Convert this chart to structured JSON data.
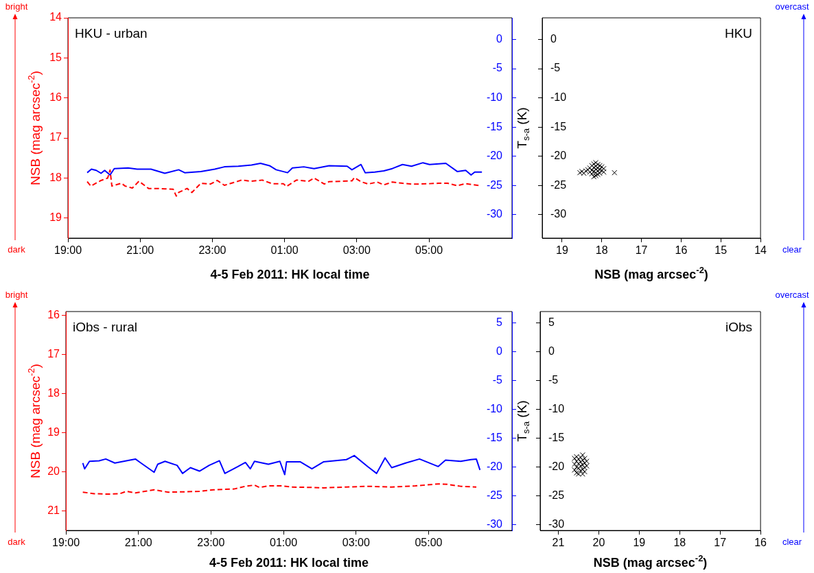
{
  "chart_data": [
    {
      "type": "line",
      "xlabel": "4-5 Feb 2011: HK local time",
      "ylabel": "NSB (mag arcsec$^{-2}$)",
      "annotations": [
        "HKU - urban",
        "bright",
        "dark"
      ],
      "xlim": [
        "2011-02-04T19:00",
        "2011-02-05T07:18"
      ],
      "xticks": [
        {
          "value": "2011-02-04T19:00",
          "label": "19:00"
        },
        {
          "value": "2011-02-04T21:00",
          "label": "21:00"
        },
        {
          "value": "2011-02-04T23:00",
          "label": "23:00"
        },
        {
          "value": "2011-02-05T01:00",
          "label": "01:00"
        },
        {
          "value": "2011-02-05T03:00",
          "label": "03:00"
        },
        {
          "value": "2011-02-05T05:00",
          "label": "05:00"
        }
      ],
      "ylim": [
        19.5,
        14
      ],
      "yticks": [
        14,
        15,
        16,
        17,
        18,
        19
      ],
      "y2lim": [
        -34,
        3.7
      ],
      "y2ticks": [
        0,
        -5,
        -10,
        -15,
        -20,
        -25,
        -30
      ],
      "series": [
        {
          "color": "#ff0000",
          "line_style": "dashed",
          "x": [
            "2011-02-04T19:32",
            "2011-02-04T19:38",
            "2011-02-04T19:55",
            "2011-02-04T20:06",
            "2011-02-04T20:10",
            "2011-02-04T20:13",
            "2011-02-04T20:29",
            "2011-02-04T20:35",
            "2011-02-04T20:47",
            "2011-02-04T20:58",
            "2011-02-04T21:14",
            "2011-02-04T21:26",
            "2011-02-04T21:41",
            "2011-02-04T21:55",
            "2011-02-04T22:00",
            "2011-02-04T22:04",
            "2011-02-04T22:18",
            "2011-02-04T22:26",
            "2011-02-04T22:41",
            "2011-02-04T22:57",
            "2011-02-04T23:08",
            "2011-02-04T23:20",
            "2011-02-04T23:38",
            "2011-02-04T23:49",
            "2011-02-05T00:05",
            "2011-02-05T00:23",
            "2011-02-05T00:39",
            "2011-02-05T00:58",
            "2011-02-05T01:03",
            "2011-02-05T01:20",
            "2011-02-05T01:40",
            "2011-02-05T01:49",
            "2011-02-05T02:06",
            "2011-02-05T02:14",
            "2011-02-05T02:52",
            "2011-02-05T02:56",
            "2011-02-05T03:07",
            "2011-02-05T03:19",
            "2011-02-05T03:34",
            "2011-02-05T03:45",
            "2011-02-05T03:59",
            "2011-02-05T04:16",
            "2011-02-05T04:31",
            "2011-02-05T04:45",
            "2011-02-05T05:01",
            "2011-02-05T05:16",
            "2011-02-05T05:31",
            "2011-02-05T05:47",
            "2011-02-05T06:01",
            "2011-02-05T06:24"
          ],
          "values": [
            18.09,
            18.2,
            18.06,
            18.0,
            17.8,
            18.2,
            18.13,
            18.2,
            18.25,
            18.08,
            18.26,
            18.26,
            18.27,
            18.28,
            18.45,
            18.36,
            18.26,
            18.36,
            18.13,
            18.15,
            18.06,
            18.18,
            18.1,
            18.05,
            18.08,
            18.05,
            18.14,
            18.14,
            18.21,
            18.05,
            18.08,
            18.0,
            18.15,
            18.09,
            18.07,
            17.99,
            18.09,
            18.15,
            18.1,
            18.17,
            18.1,
            18.13,
            18.15,
            18.15,
            18.14,
            18.13,
            18.13,
            18.19,
            18.14,
            18.19
          ]
        },
        {
          "color": "#0000ff",
          "line_style": "solid",
          "axis": "y2",
          "x": [
            "2011-02-04T19:32",
            "2011-02-04T19:39",
            "2011-02-04T19:47",
            "2011-02-04T19:55",
            "2011-02-04T20:01",
            "2011-02-04T20:10",
            "2011-02-04T20:17",
            "2011-02-04T20:40",
            "2011-02-04T20:55",
            "2011-02-04T21:18",
            "2011-02-04T21:41",
            "2011-02-04T22:04",
            "2011-02-04T22:14",
            "2011-02-04T22:41",
            "2011-02-04T23:04",
            "2011-02-04T23:20",
            "2011-02-04T23:43",
            "2011-02-05T00:05",
            "2011-02-05T00:20",
            "2011-02-05T00:35",
            "2011-02-05T00:46",
            "2011-02-05T01:05",
            "2011-02-05T01:13",
            "2011-02-05T01:32",
            "2011-02-05T01:49",
            "2011-02-05T02:14",
            "2011-02-05T02:44",
            "2011-02-05T02:52",
            "2011-02-05T03:07",
            "2011-02-05T03:14",
            "2011-02-05T03:30",
            "2011-02-05T03:45",
            "2011-02-05T03:59",
            "2011-02-05T04:16",
            "2011-02-05T04:31",
            "2011-02-05T04:50",
            "2011-02-05T05:01",
            "2011-02-05T05:28",
            "2011-02-05T05:47",
            "2011-02-05T06:01",
            "2011-02-05T06:10",
            "2011-02-05T06:16",
            "2011-02-05T06:28"
          ],
          "values": [
            -22.8,
            -22.2,
            -22.4,
            -22.9,
            -22.4,
            -23.2,
            -22.1,
            -22.0,
            -22.2,
            -22.2,
            -22.9,
            -22.3,
            -22.8,
            -22.6,
            -22.2,
            -21.8,
            -21.7,
            -21.5,
            -21.2,
            -21.6,
            -22.3,
            -22.8,
            -22.0,
            -21.8,
            -22.1,
            -21.6,
            -21.7,
            -22.3,
            -21.4,
            -22.8,
            -22.7,
            -22.5,
            -22.1,
            -21.4,
            -21.7,
            -21.1,
            -21.4,
            -21.2,
            -22.6,
            -22.4,
            -23.2,
            -22.7,
            -22.7
          ]
        }
      ]
    },
    {
      "type": "scatter",
      "xlabel": "NSB (mag arcsec$^{-2}$)",
      "ylabel": "T$_{s-a}$ (K)",
      "annotations": [
        "HKU",
        "overcast",
        "clear"
      ],
      "marker": "cross",
      "xlim": [
        19.5,
        14
      ],
      "xticks": [
        19,
        18,
        17,
        16,
        15,
        14
      ],
      "ylim": [
        -34,
        3.7
      ],
      "yticks": [
        0,
        -5,
        -10,
        -15,
        -20,
        -25,
        -30
      ],
      "series": [
        {
          "color": "#000000",
          "x": [
            18.55,
            18.5,
            18.45,
            18.4,
            18.35,
            18.3,
            18.3,
            18.25,
            18.25,
            18.25,
            18.2,
            18.2,
            18.2,
            18.2,
            18.15,
            18.15,
            18.15,
            18.15,
            18.15,
            18.1,
            18.1,
            18.1,
            18.1,
            18.05,
            18.05,
            18.05,
            18.0,
            18.0,
            17.95,
            17.95,
            17.68
          ],
          "values": [
            -22.8,
            -22.6,
            -22.9,
            -22.5,
            -22.3,
            -22.7,
            -22.0,
            -21.6,
            -22.4,
            -23.0,
            -21.3,
            -21.9,
            -22.6,
            -23.5,
            -21.1,
            -21.7,
            -22.2,
            -22.8,
            -23.3,
            -21.4,
            -22.0,
            -22.5,
            -23.1,
            -21.6,
            -22.3,
            -22.9,
            -21.8,
            -22.4,
            -22.1,
            -22.7,
            -22.8
          ]
        }
      ]
    },
    {
      "type": "line",
      "xlabel": "4-5 Feb 2011: HK local time",
      "ylabel": "NSB (mag arcsec$^{-2}$)",
      "annotations": [
        "iObs - rural",
        "bright",
        "dark"
      ],
      "xlim": [
        "2011-02-04T19:00",
        "2011-02-05T07:18"
      ],
      "xticks": [
        {
          "value": "2011-02-04T19:00",
          "label": "19:00"
        },
        {
          "value": "2011-02-04T21:00",
          "label": "21:00"
        },
        {
          "value": "2011-02-04T23:00",
          "label": "23:00"
        },
        {
          "value": "2011-02-05T01:00",
          "label": "01:00"
        },
        {
          "value": "2011-02-05T03:00",
          "label": "03:00"
        },
        {
          "value": "2011-02-05T05:00",
          "label": "05:00"
        }
      ],
      "ylim": [
        21.5,
        15.9
      ],
      "yticks": [
        16,
        17,
        18,
        19,
        20,
        21
      ],
      "y2lim": [
        -31,
        7
      ],
      "y2ticks": [
        5,
        0,
        -5,
        -10,
        -15,
        -20,
        -25,
        -30
      ],
      "series": [
        {
          "color": "#ff0000",
          "line_style": "dashed",
          "x": [
            "2011-02-04T19:28",
            "2011-02-04T19:47",
            "2011-02-04T20:10",
            "2011-02-04T20:29",
            "2011-02-04T20:40",
            "2011-02-04T20:55",
            "2011-02-04T21:26",
            "2011-02-04T21:49",
            "2011-02-04T22:18",
            "2011-02-04T22:41",
            "2011-02-04T23:04",
            "2011-02-04T23:38",
            "2011-02-04T23:57",
            "2011-02-05T00:12",
            "2011-02-05T00:20",
            "2011-02-05T00:35",
            "2011-02-05T00:58",
            "2011-02-05T01:13",
            "2011-02-05T01:49",
            "2011-02-05T02:06",
            "2011-02-05T02:44",
            "2011-02-05T03:22",
            "2011-02-05T03:59",
            "2011-02-05T04:38",
            "2011-02-05T05:16",
            "2011-02-05T05:31",
            "2011-02-05T05:53",
            "2011-02-05T06:19"
          ],
          "values": [
            20.52,
            20.56,
            20.57,
            20.56,
            20.5,
            20.54,
            20.46,
            20.52,
            20.51,
            20.5,
            20.46,
            20.44,
            20.37,
            20.34,
            20.4,
            20.36,
            20.36,
            20.39,
            20.4,
            20.41,
            20.39,
            20.37,
            20.39,
            20.36,
            20.31,
            20.32,
            20.37,
            20.39
          ]
        },
        {
          "color": "#0000ff",
          "line_style": "solid",
          "axis": "y2",
          "x": [
            "2011-02-04T19:28",
            "2011-02-04T19:31",
            "2011-02-04T19:39",
            "2011-02-04T19:55",
            "2011-02-04T20:06",
            "2011-02-04T20:21",
            "2011-02-04T20:40",
            "2011-02-04T20:55",
            "2011-02-04T21:03",
            "2011-02-04T21:26",
            "2011-02-04T21:32",
            "2011-02-04T21:44",
            "2011-02-04T22:04",
            "2011-02-04T22:13",
            "2011-02-04T22:26",
            "2011-02-04T22:41",
            "2011-02-04T22:57",
            "2011-02-04T23:14",
            "2011-02-04T23:23",
            "2011-02-04T23:43",
            "2011-02-04T23:57",
            "2011-02-05T00:05",
            "2011-02-05T00:12",
            "2011-02-05T00:35",
            "2011-02-05T00:54",
            "2011-02-05T01:02",
            "2011-02-05T01:05",
            "2011-02-05T01:28",
            "2011-02-05T01:47",
            "2011-02-05T02:06",
            "2011-02-05T02:44",
            "2011-02-05T02:57",
            "2011-02-05T03:19",
            "2011-02-05T03:34",
            "2011-02-05T03:48",
            "2011-02-05T03:59",
            "2011-02-05T04:22",
            "2011-02-05T04:45",
            "2011-02-05T05:16",
            "2011-02-05T05:28",
            "2011-02-05T05:53",
            "2011-02-05T06:10",
            "2011-02-05T06:19",
            "2011-02-05T06:25"
          ],
          "values": [
            -19.3,
            -20.3,
            -19.0,
            -18.9,
            -18.6,
            -19.3,
            -18.9,
            -18.6,
            -19.2,
            -20.9,
            -19.5,
            -19.0,
            -19.7,
            -21.1,
            -20.1,
            -20.7,
            -19.7,
            -18.9,
            -21.1,
            -20.0,
            -19.2,
            -20.3,
            -19.0,
            -19.5,
            -19.0,
            -21.3,
            -19.1,
            -19.1,
            -20.3,
            -19.1,
            -18.7,
            -18.0,
            -19.9,
            -21.1,
            -18.4,
            -20.1,
            -19.3,
            -18.6,
            -19.9,
            -18.8,
            -19.0,
            -18.7,
            -18.6,
            -20.5
          ]
        }
      ]
    },
    {
      "type": "scatter",
      "xlabel": "NSB (mag arcsec$^{-2}$)",
      "ylabel": "T$_{s-a}$ (K)",
      "annotations": [
        "iObs",
        "overcast",
        "clear"
      ],
      "marker": "cross",
      "xlim": [
        21.45,
        16
      ],
      "xticks": [
        21,
        20,
        19,
        18,
        17,
        16
      ],
      "ylim": [
        -31,
        7
      ],
      "yticks": [
        5,
        0,
        -5,
        -10,
        -15,
        -20,
        -25,
        -30
      ],
      "series": [
        {
          "color": "#000000",
          "x": [
            20.6,
            20.6,
            20.6,
            20.55,
            20.55,
            20.55,
            20.55,
            20.5,
            20.5,
            20.5,
            20.5,
            20.45,
            20.45,
            20.45,
            20.45,
            20.4,
            20.4,
            20.4,
            20.4,
            20.4,
            20.35,
            20.35,
            20.35,
            20.35,
            20.3,
            20.3
          ],
          "values": [
            -18.5,
            -19.5,
            -20.5,
            -18.2,
            -19.0,
            -20.0,
            -21.0,
            -18.6,
            -19.4,
            -20.2,
            -21.2,
            -18.3,
            -19.1,
            -19.8,
            -20.6,
            -17.9,
            -18.8,
            -19.6,
            -20.4,
            -21.2,
            -18.5,
            -19.3,
            -20.1,
            -20.8,
            -19.0,
            -19.8
          ]
        }
      ]
    }
  ]
}
